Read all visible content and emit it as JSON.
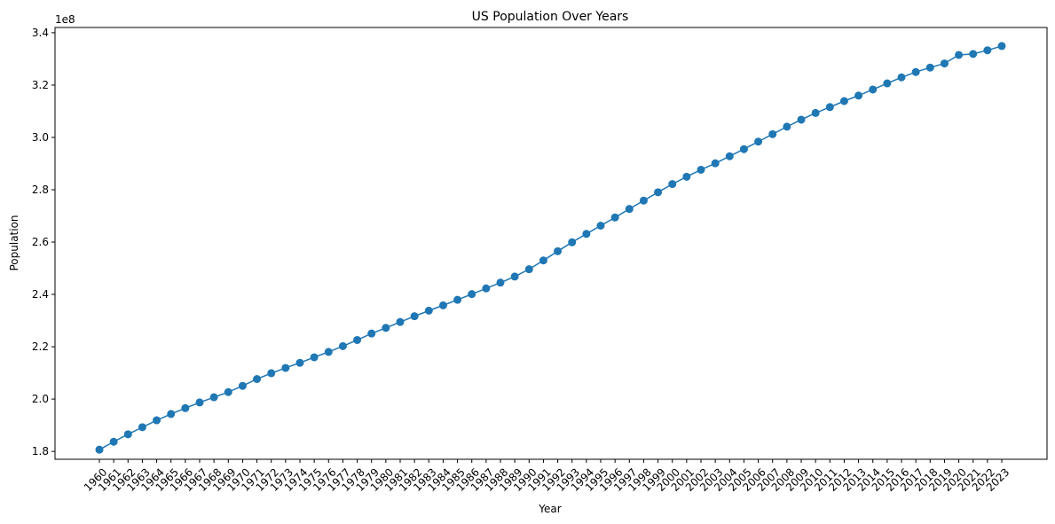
{
  "colors": {
    "series": "#1f77b4",
    "axis": "#000000",
    "background": "#ffffff"
  },
  "chart_data": {
    "type": "line",
    "title": "US Population Over Years",
    "xlabel": "Year",
    "ylabel": "Population",
    "y_offset_label": "1e8",
    "y_multiplier": 100000000,
    "grid": false,
    "legend": "none",
    "marker": "circle",
    "ylim": [
      1.77,
      3.42
    ],
    "yticks": [
      1.8,
      2.0,
      2.2,
      2.4,
      2.6,
      2.8,
      3.0,
      3.2,
      3.4
    ],
    "ytick_labels": [
      "1.8",
      "2.0",
      "2.2",
      "2.4",
      "2.6",
      "2.8",
      "3.0",
      "3.2",
      "3.4"
    ],
    "x": [
      "1960",
      "1961",
      "1962",
      "1963",
      "1964",
      "1965",
      "1966",
      "1967",
      "1968",
      "1969",
      "1970",
      "1971",
      "1972",
      "1973",
      "1974",
      "1975",
      "1976",
      "1977",
      "1978",
      "1979",
      "1980",
      "1981",
      "1982",
      "1983",
      "1984",
      "1985",
      "1986",
      "1987",
      "1988",
      "1989",
      "1990",
      "1991",
      "1992",
      "1993",
      "1994",
      "1995",
      "1996",
      "1997",
      "1998",
      "1999",
      "2000",
      "2001",
      "2002",
      "2003",
      "2004",
      "2005",
      "2006",
      "2007",
      "2008",
      "2009",
      "2010",
      "2011",
      "2012",
      "2013",
      "2014",
      "2015",
      "2016",
      "2017",
      "2018",
      "2019",
      "2020",
      "2021",
      "2022",
      "2023"
    ],
    "series": [
      {
        "values": [
          180671000,
          183691000,
          186538000,
          189242000,
          191889000,
          194303000,
          196560000,
          198712000,
          200706000,
          202677000,
          205052000,
          207661000,
          209896000,
          211909000,
          213854000,
          215973000,
          218035000,
          220239000,
          222585000,
          225055000,
          227225000,
          229466000,
          231664000,
          233792000,
          235825000,
          237924000,
          240133000,
          242289000,
          244499000,
          246819000,
          249623000,
          252981000,
          256514000,
          259919000,
          263126000,
          266278000,
          269394000,
          272657000,
          275854000,
          279040000,
          282162000,
          284969000,
          287625000,
          290108000,
          292805000,
          295517000,
          298380000,
          301231000,
          304094000,
          306772000,
          309327000,
          311583000,
          313878000,
          315994000,
          318301000,
          320635000,
          322941000,
          324986000,
          326688000,
          328240000,
          331501000,
          331894000,
          333288000,
          334915000
        ]
      }
    ]
  }
}
